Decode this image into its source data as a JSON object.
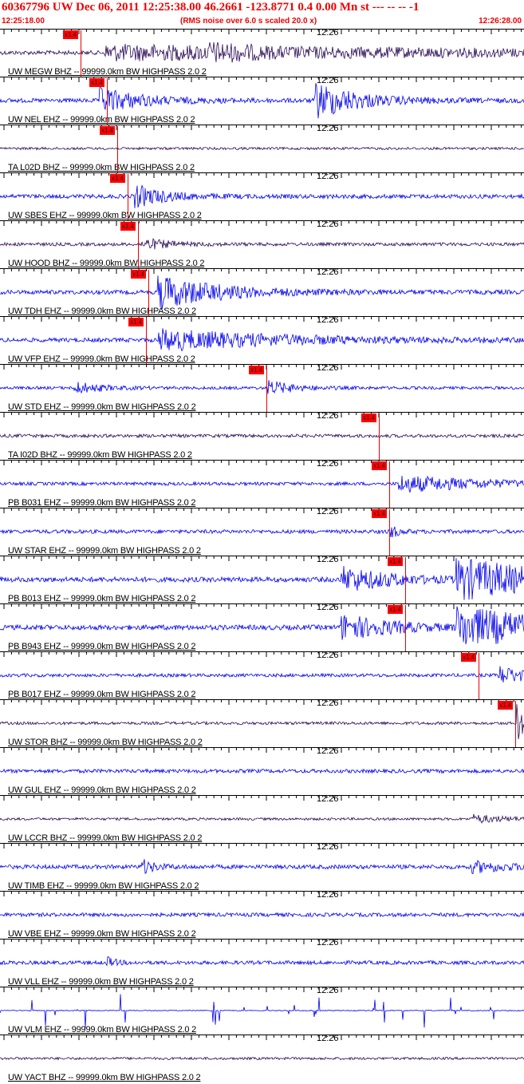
{
  "header": {
    "title": "60367796 UW Dec 06, 2011 12:25:38.00   46.2661 -123.8771  0.4 0.00 Mn st --- -- --  -1",
    "start_time": "12:25:18.00",
    "scale_note": "(RMS noise over 6.0 s scaled 20.0 x)",
    "end_time": "12:26:28.00"
  },
  "colors": {
    "header_red": "#e00000",
    "pick_red": "#ff0000",
    "trace_blue": "#0000ee",
    "trace_navy": "#2a0a55"
  },
  "chart_data": {
    "type": "line",
    "x_label_tick": "12:26",
    "x_range": [
      "12:25:18.00",
      "12:26:28.00"
    ],
    "pick_label": "x1.4",
    "traces": [
      {
        "label": "UW MEGW BHZ -- 99999.0km BW  HIGHPASS  2.0  2",
        "color": "navy",
        "pick_frac": 0.12,
        "bursts": [
          [
            0.2,
            0.95,
            0.35
          ],
          [
            0.4,
            0.2,
            0.5
          ]
        ],
        "base": 0.1
      },
      {
        "label": "UW NEL EHZ -- 99999.0km BW  HIGHPASS  2.0  2",
        "color": "blue",
        "pick_frac": 0.17,
        "bursts": [
          [
            0.19,
            0.1,
            0.6
          ],
          [
            0.6,
            0.1,
            0.9
          ]
        ],
        "base": 0.1
      },
      {
        "label": "TA L02D BHZ -- 99999.0km BW  HIGHPASS  2.0  2",
        "color": "navy",
        "pick_frac": 0.19,
        "bursts": [],
        "base": 0.06
      },
      {
        "label": "UW SBES EHZ -- 99999.0km BW  HIGHPASS  2.0  2",
        "color": "blue",
        "pick_frac": 0.21,
        "bursts": [
          [
            0.255,
            0.07,
            0.55
          ]
        ],
        "base": 0.1
      },
      {
        "label": "UW HOOD BHZ -- 99999.0km BW  HIGHPASS  2.0  2",
        "color": "navy",
        "pick_frac": 0.23,
        "bursts": [
          [
            0.27,
            0.06,
            0.3
          ]
        ],
        "base": 0.08
      },
      {
        "label": "UW TDH EHZ -- 99999.0km BW  HIGHPASS  2.0  2",
        "color": "blue",
        "pick_frac": 0.25,
        "bursts": [
          [
            0.3,
            0.15,
            0.8
          ]
        ],
        "base": 0.1
      },
      {
        "label": "UW VFP EHZ -- 99999.0km BW  HIGHPASS  2.0  2",
        "color": "blue",
        "pick_frac": 0.245,
        "bursts": [
          [
            0.3,
            0.3,
            0.5
          ]
        ],
        "base": 0.1
      },
      {
        "label": "UW STD EHZ -- 99999.0km BW  HIGHPASS  2.0  2",
        "color": "blue",
        "pick_frac": 0.475,
        "bursts": [
          [
            0.14,
            0.06,
            0.3
          ],
          [
            0.51,
            0.06,
            0.35
          ]
        ],
        "base": 0.07
      },
      {
        "label": "TA I02D BHZ -- 99999.0km BW  HIGHPASS  2.0  2",
        "color": "navy",
        "pick_frac": 0.69,
        "bursts": [],
        "base": 0.08
      },
      {
        "label": "PB B031 EHZ -- 99999.0km BW  HIGHPASS  2.0  2",
        "color": "blue",
        "pick_frac": 0.71,
        "bursts": [
          [
            0.76,
            0.2,
            0.4
          ]
        ],
        "base": 0.08
      },
      {
        "label": "UW STAR EHZ -- 99999.0km BW  HIGHPASS  2.0  2",
        "color": "blue",
        "pick_frac": 0.71,
        "bursts": [
          [
            0.74,
            0.02,
            0.4
          ]
        ],
        "base": 0.09
      },
      {
        "label": "PB B013 EHZ -- 99999.0km BW  HIGHPASS  2.0  2",
        "color": "blue",
        "pick_frac": 0.74,
        "bursts": [
          [
            0.65,
            0.12,
            0.6
          ],
          [
            0.87,
            0.25,
            1.0
          ]
        ],
        "base": 0.12
      },
      {
        "label": "PB B943 EHZ -- 99999.0km BW  HIGHPASS  2.0  2",
        "color": "blue",
        "pick_frac": 0.74,
        "bursts": [
          [
            0.65,
            0.12,
            0.6
          ],
          [
            0.87,
            0.25,
            1.0
          ]
        ],
        "base": 0.12
      },
      {
        "label": "PB B017 EHZ -- 99999.0km BW  HIGHPASS  2.0  2",
        "color": "blue",
        "pick_frac": 0.88,
        "bursts": [
          [
            0.95,
            0.07,
            0.45
          ]
        ],
        "base": 0.08
      },
      {
        "label": "UW STOR BHZ -- 99999.0km BW  HIGHPASS  2.0  2",
        "color": "navy",
        "pick_frac": 0.95,
        "bursts": [
          [
            0.985,
            0.02,
            1.0
          ]
        ],
        "base": 0.07
      },
      {
        "label": "UW GUL EHZ -- 99999.0km BW  HIGHPASS  2.0  2",
        "color": "blue",
        "pick_frac": null,
        "bursts": [],
        "base": 0.09
      },
      {
        "label": "UW LCCR BHZ -- 99999.0km BW  HIGHPASS  2.0  2",
        "color": "navy",
        "pick_frac": null,
        "bursts": [
          [
            0.9,
            0.08,
            0.2
          ]
        ],
        "base": 0.06
      },
      {
        "label": "UW TIMB EHZ -- 99999.0km BW  HIGHPASS  2.0  2",
        "color": "blue",
        "pick_frac": null,
        "bursts": [
          [
            0.27,
            0.03,
            0.35
          ],
          [
            0.9,
            0.1,
            0.25
          ]
        ],
        "base": 0.1
      },
      {
        "label": "UW VBE EHZ -- 99999.0km BW  HIGHPASS  2.0  2",
        "color": "blue",
        "pick_frac": null,
        "bursts": [],
        "base": 0.09
      },
      {
        "label": "UW VLL EHZ -- 99999.0km BW  HIGHPASS  2.0  2",
        "color": "blue",
        "pick_frac": null,
        "bursts": [
          [
            0.2,
            0.02,
            0.3
          ]
        ],
        "base": 0.09
      },
      {
        "label": "UW VLM EHZ -- 99999.0km BW  HIGHPASS  2.0  2",
        "color": "blue",
        "pick_frac": null,
        "bursts": [],
        "base": 0.02,
        "spiky": true
      },
      {
        "label": "UW YACT BHZ -- 99999.0km BW  HIGHPASS  2.0  2",
        "color": "navy",
        "pick_frac": null,
        "bursts": [],
        "base": 0.06
      }
    ]
  }
}
